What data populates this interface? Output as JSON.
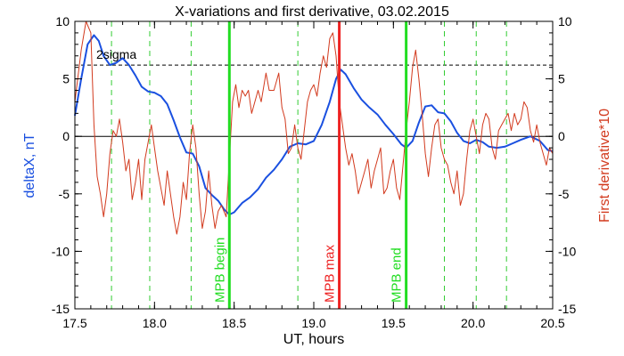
{
  "chart_data": {
    "type": "line",
    "title": "X-variations and first derivative, 03.02.2015",
    "xlabel": "UT, hours",
    "ylabel_left": "deltaX, nT",
    "ylabel_right": "First derivative*10",
    "xlim": [
      17.5,
      20.5
    ],
    "ylim_left": [
      -15,
      10
    ],
    "ylim_right": [
      -15,
      10
    ],
    "x_ticks": [
      "17.5",
      "18.0",
      "18.5",
      "19.0",
      "19.5",
      "20.0",
      "20.5"
    ],
    "y_ticks_left": [
      "-15",
      "-10",
      "-5",
      "0",
      "5",
      "10"
    ],
    "y_ticks_right": [
      "-15",
      "-10",
      "-5",
      "0",
      "5",
      "10"
    ],
    "colors": {
      "deltaX": "#1a50e0",
      "derivative": "#d23a1e",
      "mpb_begin_end": "#22dd22",
      "mpb_max": "#ee2222",
      "dashed_green": "#33cc33",
      "axes": "#000000"
    },
    "threshold": {
      "label": "2sigma",
      "value": 6.2
    },
    "zero_line": 0,
    "dashed_verticals": [
      17.73,
      17.97,
      18.23,
      18.9,
      19.82,
      20.02,
      20.21
    ],
    "markers": [
      {
        "label": "MPB begin",
        "x": 18.47,
        "color": "#22dd22"
      },
      {
        "label": "MPB max",
        "x": 19.16,
        "color": "#ee2222"
      },
      {
        "label": "MPB end",
        "x": 19.58,
        "color": "#22dd22"
      }
    ],
    "series": [
      {
        "name": "deltaX",
        "points": [
          [
            17.5,
            1.8
          ],
          [
            17.54,
            5.0
          ],
          [
            17.58,
            8.0
          ],
          [
            17.62,
            8.8
          ],
          [
            17.65,
            8.3
          ],
          [
            17.68,
            7.0
          ],
          [
            17.72,
            6.2
          ],
          [
            17.76,
            6.4
          ],
          [
            17.8,
            6.8
          ],
          [
            17.84,
            6.2
          ],
          [
            17.88,
            5.3
          ],
          [
            17.92,
            4.3
          ],
          [
            17.96,
            3.9
          ],
          [
            18.0,
            3.8
          ],
          [
            18.04,
            3.5
          ],
          [
            18.08,
            2.8
          ],
          [
            18.12,
            1.4
          ],
          [
            18.16,
            -0.1
          ],
          [
            18.2,
            -1.4
          ],
          [
            18.24,
            -1.5
          ],
          [
            18.28,
            -2.6
          ],
          [
            18.32,
            -4.5
          ],
          [
            18.36,
            -5.1
          ],
          [
            18.4,
            -5.6
          ],
          [
            18.44,
            -6.4
          ],
          [
            18.47,
            -6.8
          ],
          [
            18.5,
            -6.6
          ],
          [
            18.55,
            -5.8
          ],
          [
            18.6,
            -5.3
          ],
          [
            18.65,
            -4.6
          ],
          [
            18.7,
            -3.6
          ],
          [
            18.75,
            -2.9
          ],
          [
            18.8,
            -2.0
          ],
          [
            18.85,
            -0.9
          ],
          [
            18.9,
            -0.6
          ],
          [
            18.95,
            -0.7
          ],
          [
            19.0,
            -0.4
          ],
          [
            19.05,
            1.0
          ],
          [
            19.1,
            3.0
          ],
          [
            19.14,
            5.0
          ],
          [
            19.17,
            5.8
          ],
          [
            19.2,
            5.4
          ],
          [
            19.25,
            4.2
          ],
          [
            19.3,
            3.2
          ],
          [
            19.35,
            2.5
          ],
          [
            19.4,
            1.9
          ],
          [
            19.45,
            1.0
          ],
          [
            19.5,
            0.2
          ],
          [
            19.55,
            -0.7
          ],
          [
            19.58,
            -1.0
          ],
          [
            19.62,
            -0.4
          ],
          [
            19.66,
            1.2
          ],
          [
            19.7,
            2.6
          ],
          [
            19.74,
            2.7
          ],
          [
            19.78,
            2.1
          ],
          [
            19.82,
            2.0
          ],
          [
            19.86,
            1.3
          ],
          [
            19.9,
            0.3
          ],
          [
            19.94,
            -0.4
          ],
          [
            19.98,
            -0.6
          ],
          [
            20.02,
            -0.3
          ],
          [
            20.06,
            -0.5
          ],
          [
            20.1,
            -0.9
          ],
          [
            20.15,
            -1.0
          ],
          [
            20.2,
            -0.9
          ],
          [
            20.25,
            -0.6
          ],
          [
            20.3,
            -0.3
          ],
          [
            20.36,
            0.0
          ],
          [
            20.42,
            -0.4
          ],
          [
            20.47,
            -1.2
          ],
          [
            20.5,
            -1.3
          ]
        ]
      },
      {
        "name": "First derivative*10",
        "points": [
          [
            17.5,
            3.0
          ],
          [
            17.54,
            7.5
          ],
          [
            17.57,
            10.0
          ],
          [
            17.6,
            9.0
          ],
          [
            17.62,
            1.0
          ],
          [
            17.64,
            -3.5
          ],
          [
            17.66,
            -5.0
          ],
          [
            17.68,
            -7.0
          ],
          [
            17.7,
            -5.0
          ],
          [
            17.72,
            -1.5
          ],
          [
            17.74,
            0.5
          ],
          [
            17.76,
            0.0
          ],
          [
            17.78,
            1.5
          ],
          [
            17.8,
            -0.5
          ],
          [
            17.82,
            -3.0
          ],
          [
            17.84,
            -2.0
          ],
          [
            17.86,
            -5.5
          ],
          [
            17.88,
            -4.0
          ],
          [
            17.9,
            -2.0
          ],
          [
            17.92,
            -5.5
          ],
          [
            17.94,
            -2.0
          ],
          [
            17.96,
            -0.5
          ],
          [
            17.98,
            1.0
          ],
          [
            18.0,
            -1.0
          ],
          [
            18.02,
            -3.0
          ],
          [
            18.04,
            -4.5
          ],
          [
            18.06,
            -6.0
          ],
          [
            18.08,
            -3.0
          ],
          [
            18.1,
            -5.0
          ],
          [
            18.12,
            -7.0
          ],
          [
            18.14,
            -8.5
          ],
          [
            18.16,
            -7.0
          ],
          [
            18.18,
            -4.0
          ],
          [
            18.2,
            -5.5
          ],
          [
            18.22,
            -1.5
          ],
          [
            18.24,
            1.0
          ],
          [
            18.26,
            -1.0
          ],
          [
            18.28,
            -5.0
          ],
          [
            18.3,
            -8.0
          ],
          [
            18.32,
            -6.5
          ],
          [
            18.34,
            -3.0
          ],
          [
            18.36,
            -6.0
          ],
          [
            18.38,
            -8.0
          ],
          [
            18.4,
            -6.5
          ],
          [
            18.42,
            -6.0
          ],
          [
            18.45,
            -7.0
          ],
          [
            18.47,
            -2.0
          ],
          [
            18.49,
            3.0
          ],
          [
            18.51,
            4.5
          ],
          [
            18.53,
            2.5
          ],
          [
            18.55,
            4.0
          ],
          [
            18.57,
            3.5
          ],
          [
            18.59,
            4.0
          ],
          [
            18.61,
            2.0
          ],
          [
            18.63,
            3.0
          ],
          [
            18.65,
            4.0
          ],
          [
            18.67,
            3.0
          ],
          [
            18.7,
            5.5
          ],
          [
            18.72,
            4.0
          ],
          [
            18.75,
            4.0
          ],
          [
            18.78,
            5.5
          ],
          [
            18.8,
            2.5
          ],
          [
            18.82,
            1.5
          ],
          [
            18.84,
            -1.5
          ],
          [
            18.86,
            -1.0
          ],
          [
            18.88,
            1.0
          ],
          [
            18.9,
            -1.0
          ],
          [
            18.92,
            -2.0
          ],
          [
            18.94,
            0.5
          ],
          [
            18.96,
            3.0
          ],
          [
            18.98,
            4.0
          ],
          [
            19.0,
            4.5
          ],
          [
            19.02,
            3.5
          ],
          [
            19.04,
            5.5
          ],
          [
            19.06,
            7.0
          ],
          [
            19.08,
            6.0
          ],
          [
            19.1,
            8.5
          ],
          [
            19.12,
            9.0
          ],
          [
            19.14,
            7.0
          ],
          [
            19.16,
            3.0
          ],
          [
            19.18,
            1.0
          ],
          [
            19.2,
            -1.0
          ],
          [
            19.22,
            -2.5
          ],
          [
            19.24,
            -1.5
          ],
          [
            19.26,
            -3.0
          ],
          [
            19.28,
            -5.0
          ],
          [
            19.3,
            -4.0
          ],
          [
            19.32,
            -3.0
          ],
          [
            19.34,
            -2.0
          ],
          [
            19.36,
            -4.5
          ],
          [
            19.38,
            -3.0
          ],
          [
            19.4,
            -2.0
          ],
          [
            19.42,
            -1.0
          ],
          [
            19.44,
            -5.0
          ],
          [
            19.46,
            -4.5
          ],
          [
            19.48,
            -3.0
          ],
          [
            19.5,
            -2.0
          ],
          [
            19.52,
            -4.5
          ],
          [
            19.54,
            -5.5
          ],
          [
            19.56,
            -2.5
          ],
          [
            19.58,
            0.5
          ],
          [
            19.6,
            3.0
          ],
          [
            19.62,
            6.0
          ],
          [
            19.64,
            7.5
          ],
          [
            19.66,
            5.0
          ],
          [
            19.68,
            2.0
          ],
          [
            19.7,
            -1.5
          ],
          [
            19.72,
            -3.5
          ],
          [
            19.74,
            -1.0
          ],
          [
            19.76,
            1.0
          ],
          [
            19.78,
            1.5
          ],
          [
            19.8,
            -1.0
          ],
          [
            19.82,
            -2.0
          ],
          [
            19.84,
            -2.5
          ],
          [
            19.86,
            -4.0
          ],
          [
            19.88,
            -5.0
          ],
          [
            19.9,
            -3.0
          ],
          [
            19.92,
            -6.0
          ],
          [
            19.94,
            -5.0
          ],
          [
            19.96,
            -2.0
          ],
          [
            19.98,
            0.5
          ],
          [
            20.0,
            1.5
          ],
          [
            20.02,
            0.0
          ],
          [
            20.04,
            -1.5
          ],
          [
            20.06,
            1.0
          ],
          [
            20.08,
            2.0
          ],
          [
            20.1,
            1.5
          ],
          [
            20.12,
            -1.0
          ],
          [
            20.14,
            -2.0
          ],
          [
            20.16,
            0.5
          ],
          [
            20.18,
            1.0
          ],
          [
            20.2,
            1.5
          ],
          [
            20.22,
            2.0
          ],
          [
            20.24,
            0.5
          ],
          [
            20.26,
            2.0
          ],
          [
            20.28,
            1.0
          ],
          [
            20.3,
            1.5
          ],
          [
            20.32,
            3.0
          ],
          [
            20.34,
            2.5
          ],
          [
            20.36,
            0.5
          ],
          [
            20.38,
            -0.5
          ],
          [
            20.4,
            1.0
          ],
          [
            20.42,
            -0.5
          ],
          [
            20.44,
            -1.5
          ],
          [
            20.46,
            -2.5
          ],
          [
            20.48,
            -1.0
          ],
          [
            20.5,
            -1.5
          ]
        ]
      }
    ]
  }
}
